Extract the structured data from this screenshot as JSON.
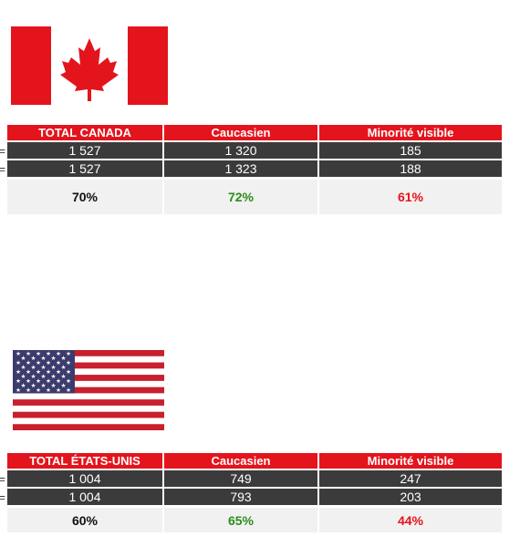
{
  "canada": {
    "flag_icon": "canada-flag-icon",
    "headers": [
      "TOTAL CANADA",
      "Caucasien",
      "Minorité visible"
    ],
    "rows": [
      [
        "1 527",
        "1 320",
        "185"
      ],
      [
        "1 527",
        "1 323",
        "188"
      ]
    ],
    "percentages": [
      "70%",
      "72%",
      "61%"
    ]
  },
  "usa": {
    "flag_icon": "usa-flag-icon",
    "headers": [
      "TOTAL ÉTATS-UNIS",
      "Caucasien",
      "Minorité visible"
    ],
    "rows": [
      [
        "1 004",
        "749",
        "247"
      ],
      [
        "1 004",
        "793",
        "203"
      ]
    ],
    "percentages": [
      "60%",
      "65%",
      "44%"
    ]
  },
  "colors": {
    "header_red": "#e4141c",
    "data_row_dark": "#3b3b3b",
    "percent_row_bg": "#f1f1f1",
    "percent_total": "#111111",
    "percent_caucasian": "#2e8b1e",
    "percent_minority": "#e4141c"
  }
}
